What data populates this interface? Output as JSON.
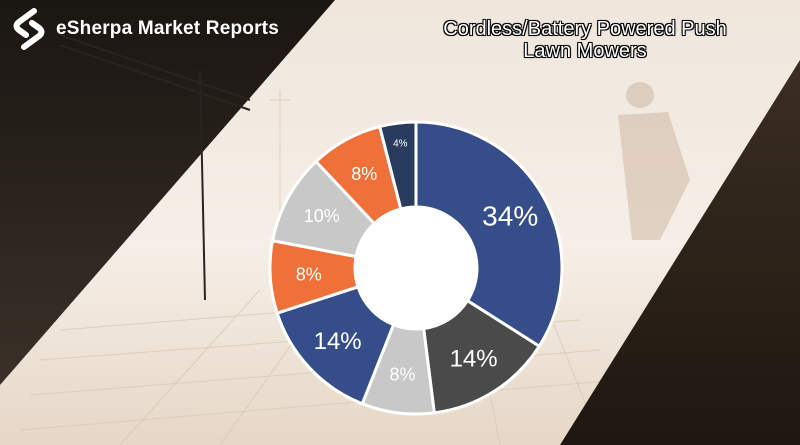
{
  "brand": {
    "name": "eSherpa Market Reports"
  },
  "title": {
    "line1": "Cordless/Battery Powered Push",
    "line2": "Lawn Mowers"
  },
  "colors": {
    "blue": "#354d88",
    "dark": "#4a4a4a",
    "gray": "#c8c8c8",
    "orange": "#f0703a",
    "navy": "#2a3c5e"
  },
  "chart_data": {
    "type": "pie",
    "title": "",
    "slices": [
      {
        "label": "34%",
        "value": 34,
        "color": "#354d88"
      },
      {
        "label": "14%",
        "value": 14,
        "color": "#4a4a4a"
      },
      {
        "label": "8%",
        "value": 8,
        "color": "#c8c8c8"
      },
      {
        "label": "14%",
        "value": 14,
        "color": "#354d88"
      },
      {
        "label": "8%",
        "value": 8,
        "color": "#f0703a"
      },
      {
        "label": "10%",
        "value": 10,
        "color": "#c8c8c8"
      },
      {
        "label": "8%",
        "value": 8,
        "color": "#f0703a"
      },
      {
        "label": "4%",
        "value": 4,
        "color": "#2a3c5e"
      }
    ]
  }
}
